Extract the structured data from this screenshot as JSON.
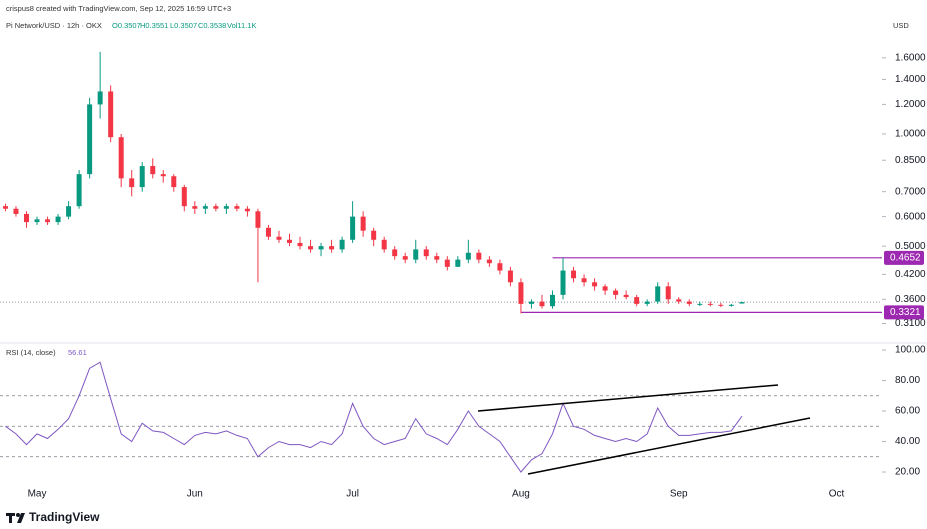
{
  "credit": "crispus8 created with TradingView.com, Sep 12, 2025 16:59 UTC+3",
  "brand": "TradingView",
  "chart_data": [
    {
      "type": "candlestick",
      "title": "Pi Network/USD · 12h · OKX",
      "ohlc_header": [
        "O0.3507",
        "H0.3551",
        "L0.3507",
        "C0.3538",
        "Vol11.1K"
      ],
      "currency": "USD",
      "log_scale": true,
      "up_color": "#089981",
      "down_color": "#f23645",
      "categories": [
        null,
        null,
        null,
        "May",
        null,
        null,
        null,
        null,
        null,
        null,
        null,
        null,
        null,
        null,
        null,
        null,
        null,
        null,
        "Jun",
        null,
        null,
        null,
        null,
        null,
        null,
        null,
        null,
        null,
        null,
        null,
        null,
        null,
        null,
        "Jul",
        null,
        null,
        null,
        null,
        null,
        null,
        null,
        null,
        null,
        null,
        null,
        null,
        null,
        null,
        null,
        "Aug",
        null,
        null,
        null,
        null,
        null,
        null,
        null,
        null,
        null,
        null,
        null,
        null,
        null,
        null,
        "Sep",
        null,
        null,
        null,
        null,
        null,
        null,
        null,
        null,
        null,
        null,
        null,
        null,
        null,
        null,
        "Oct",
        null,
        null,
        null
      ],
      "open": [
        0.64,
        0.63,
        0.61,
        0.58,
        0.59,
        0.58,
        0.6,
        0.64,
        0.78,
        1.2,
        1.3,
        0.98,
        0.76,
        0.72,
        0.82,
        0.78,
        0.77,
        0.72,
        0.64,
        0.63,
        0.64,
        0.63,
        0.64,
        0.63,
        0.62,
        0.56,
        0.53,
        0.52,
        0.51,
        0.5,
        0.49,
        0.5,
        0.49,
        0.52,
        0.6,
        0.55,
        0.52,
        0.49,
        0.47,
        0.46,
        0.49,
        0.47,
        0.46,
        0.44,
        0.46,
        0.48,
        0.46,
        0.45,
        0.43,
        0.4,
        0.35,
        0.355,
        0.345,
        0.37,
        0.43,
        0.41,
        0.4,
        0.39,
        0.38,
        0.37,
        0.365,
        0.35,
        0.355,
        0.39,
        0.36,
        0.355,
        0.35,
        0.35,
        0.348,
        0.347,
        0.3507,
        null,
        null,
        null,
        null,
        null,
        null,
        null,
        null,
        null,
        null,
        null,
        null
      ],
      "high": [
        0.65,
        0.64,
        0.62,
        0.6,
        0.6,
        0.61,
        0.66,
        0.8,
        1.25,
        1.66,
        1.35,
        1.0,
        0.8,
        0.84,
        0.86,
        0.8,
        0.78,
        0.73,
        0.66,
        0.65,
        0.65,
        0.65,
        0.65,
        0.64,
        0.63,
        0.57,
        0.55,
        0.54,
        0.53,
        0.52,
        0.51,
        0.52,
        0.53,
        0.66,
        0.62,
        0.56,
        0.53,
        0.5,
        0.48,
        0.52,
        0.5,
        0.48,
        0.47,
        0.47,
        0.52,
        0.49,
        0.47,
        0.46,
        0.44,
        0.41,
        0.36,
        0.37,
        0.38,
        0.4652,
        0.44,
        0.42,
        0.41,
        0.395,
        0.385,
        0.38,
        0.37,
        0.36,
        0.4,
        0.4,
        0.365,
        0.36,
        0.355,
        0.355,
        0.352,
        0.35,
        0.3551,
        null,
        null,
        null,
        null,
        null,
        null,
        null,
        null,
        null,
        null,
        null,
        null
      ],
      "low": [
        0.62,
        0.6,
        0.56,
        0.57,
        0.57,
        0.57,
        0.59,
        0.63,
        0.76,
        1.1,
        0.95,
        0.72,
        0.68,
        0.7,
        0.76,
        0.74,
        0.7,
        0.62,
        0.61,
        0.61,
        0.62,
        0.61,
        0.62,
        0.6,
        0.4,
        0.52,
        0.51,
        0.5,
        0.49,
        0.48,
        0.47,
        0.48,
        0.48,
        0.51,
        0.53,
        0.5,
        0.48,
        0.46,
        0.45,
        0.45,
        0.46,
        0.45,
        0.43,
        0.44,
        0.45,
        0.45,
        0.44,
        0.42,
        0.39,
        0.33,
        0.34,
        0.34,
        0.34,
        0.36,
        0.4,
        0.39,
        0.38,
        0.37,
        0.36,
        0.36,
        0.345,
        0.345,
        0.35,
        0.35,
        0.35,
        0.345,
        0.345,
        0.345,
        0.343,
        0.344,
        0.3507,
        null,
        null,
        null,
        null,
        null,
        null,
        null,
        null,
        null,
        null,
        null,
        null
      ],
      "close": [
        0.63,
        0.61,
        0.58,
        0.59,
        0.58,
        0.6,
        0.64,
        0.78,
        1.2,
        1.3,
        0.98,
        0.76,
        0.72,
        0.82,
        0.78,
        0.77,
        0.72,
        0.64,
        0.63,
        0.64,
        0.63,
        0.64,
        0.63,
        0.62,
        0.56,
        0.53,
        0.52,
        0.51,
        0.5,
        0.49,
        0.5,
        0.49,
        0.52,
        0.6,
        0.55,
        0.52,
        0.49,
        0.47,
        0.46,
        0.49,
        0.47,
        0.46,
        0.44,
        0.46,
        0.48,
        0.46,
        0.45,
        0.43,
        0.4,
        0.35,
        0.355,
        0.345,
        0.37,
        0.43,
        0.41,
        0.4,
        0.39,
        0.38,
        0.37,
        0.365,
        0.35,
        0.355,
        0.39,
        0.36,
        0.355,
        0.35,
        0.35,
        0.348,
        0.347,
        0.348,
        0.3538,
        null,
        null,
        null,
        null,
        null,
        null,
        null,
        null,
        null,
        null,
        null,
        null
      ],
      "ylim": [
        0.28,
        2.15
      ],
      "yticks": [
        {
          "value": 1.6,
          "label": "1.6000"
        },
        {
          "value": 1.4,
          "label": "1.4000"
        },
        {
          "value": 1.2,
          "label": "1.2000"
        },
        {
          "value": 1.0,
          "label": "1.0000"
        },
        {
          "value": 0.85,
          "label": "0.8500"
        },
        {
          "value": 0.7,
          "label": "0.7000"
        },
        {
          "value": 0.6,
          "label": "0.6000"
        },
        {
          "value": 0.5,
          "label": "0.5000"
        },
        {
          "value": 0.42,
          "label": "0.4200"
        },
        {
          "value": 0.36,
          "label": "0.3600"
        },
        {
          "value": 0.31,
          "label": "0.3100"
        }
      ],
      "levels": [
        0.4652,
        0.3321
      ],
      "level_color": "#9c27b0"
    },
    {
      "type": "line",
      "title": "RSI (14, close)",
      "last_value": "56.61",
      "color": "#7e57c2",
      "values": [
        50,
        45,
        38,
        45,
        42,
        48,
        55,
        70,
        88,
        92,
        68,
        45,
        40,
        52,
        47,
        46,
        42,
        38,
        44,
        46,
        45,
        47,
        44,
        42,
        30,
        36,
        40,
        38,
        38,
        36,
        40,
        38,
        45,
        65,
        50,
        42,
        38,
        40,
        42,
        55,
        45,
        42,
        38,
        48,
        60,
        50,
        45,
        40,
        30,
        20,
        28,
        32,
        45,
        65,
        50,
        48,
        44,
        42,
        40,
        42,
        40,
        45,
        62,
        50,
        44,
        44,
        45,
        46,
        46,
        47,
        56.61,
        null,
        null,
        null,
        null,
        null,
        null,
        null,
        null,
        null,
        null,
        null,
        null
      ],
      "ylim": [
        11.5,
        103.3
      ],
      "yticks": [
        {
          "value": 100,
          "label": "100.00"
        },
        {
          "value": 80,
          "label": "80.00"
        },
        {
          "value": 60,
          "label": "60.00"
        },
        {
          "value": 40,
          "label": "40.00"
        },
        {
          "value": 20,
          "label": "20.00"
        }
      ],
      "bands": [
        70,
        50,
        30
      ]
    }
  ]
}
